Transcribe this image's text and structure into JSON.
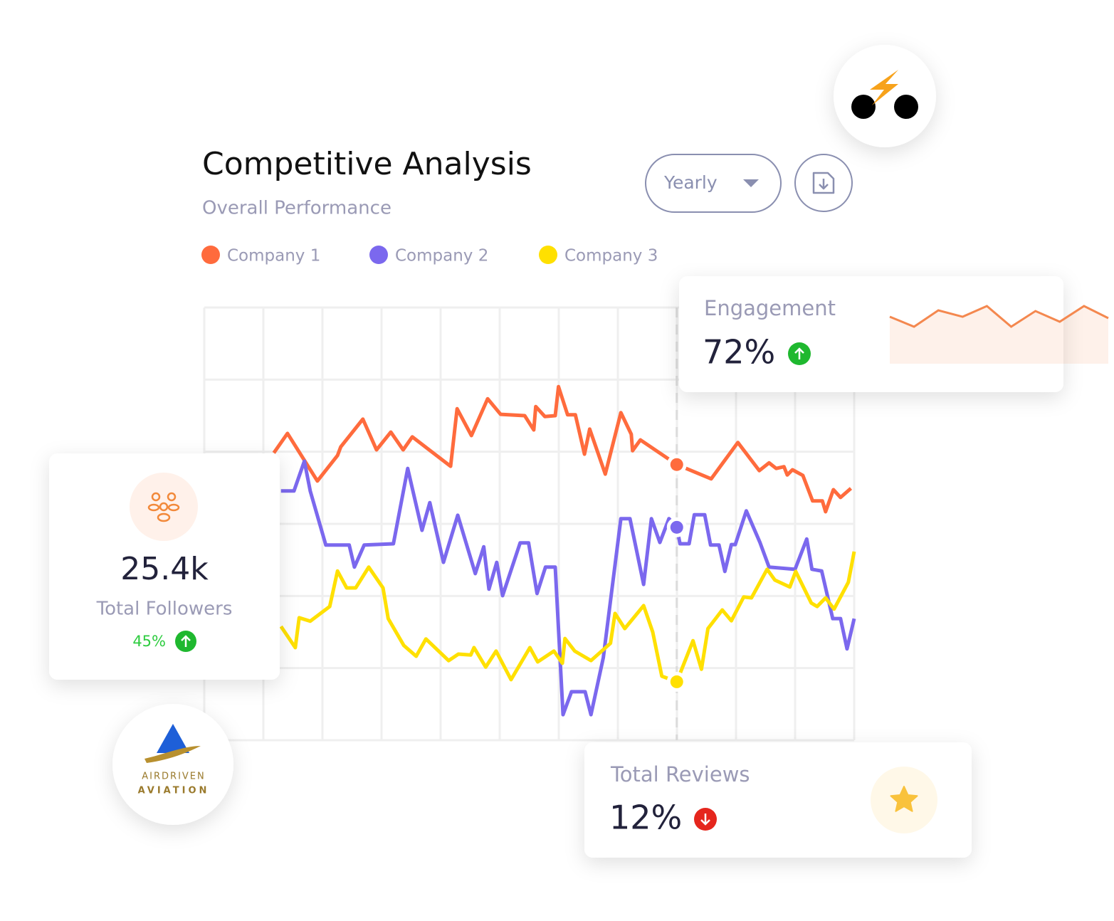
{
  "header": {
    "title": "Competitive Analysis",
    "subtitle": "Overall Performance",
    "period": "Yearly"
  },
  "chart_data": {
    "type": "line",
    "xlim": [
      0,
      100
    ],
    "ylim": [
      0,
      100
    ],
    "grid": true,
    "marker_x": 72.7,
    "series": [
      {
        "name": "Company 1",
        "color": "#ff6b3d",
        "x": [
          10.7,
          12.8,
          17.4,
          20.5,
          21.0,
          24.4,
          26.5,
          28.7,
          30.6,
          32.0,
          37.9,
          38.9,
          41.1,
          43.6,
          45.6,
          49.3,
          50.7,
          51.0,
          52.4,
          54.0,
          54.5,
          55.9,
          57.1,
          58.5,
          59.3,
          61.7,
          64.1,
          65.7,
          65.9,
          67.1,
          72.7,
          78.0,
          82.1,
          85.4,
          86.9,
          88.0,
          89.2,
          89.7,
          90.5,
          92.1,
          93.6,
          95.1,
          95.6,
          96.8,
          97.9,
          99.5
        ],
        "values": [
          66.4,
          70.9,
          59.9,
          65.8,
          67.8,
          74.2,
          67.1,
          71.2,
          67.1,
          70.1,
          63.3,
          76.6,
          70.4,
          78.9,
          75.3,
          75.0,
          71.7,
          77.1,
          74.8,
          75.0,
          81.7,
          75.2,
          75.2,
          66.1,
          71.9,
          61.5,
          75.7,
          70.7,
          66.9,
          69.4,
          63.7,
          60.4,
          68.8,
          62.3,
          64.1,
          62.8,
          63.2,
          61.3,
          62.5,
          61.2,
          55.3,
          55.3,
          52.8,
          57.9,
          56.1,
          58.2
        ]
      },
      {
        "name": "Company 2",
        "color": "#7b68ee",
        "x": [
          11.8,
          13.8,
          15.4,
          16.3,
          18.7,
          22.3,
          23.1,
          24.6,
          29.1,
          31.3,
          33.5,
          34.7,
          36.8,
          39.0,
          41.7,
          43.0,
          43.8,
          45.0,
          45.9,
          48.6,
          49.9,
          51.2,
          52.5,
          54.0,
          55.2,
          56.5,
          58.6,
          59.5,
          61.4,
          64.1,
          65.5,
          67.6,
          68.8,
          70.1,
          71.5,
          72.7,
          73.2,
          74.6,
          75.4,
          77.0,
          77.9,
          79.2,
          80.1,
          81.1,
          81.7,
          83.4,
          85.5,
          86.9,
          90.9,
          92.7,
          93.5,
          95.0,
          96.7,
          97.9,
          98.9,
          100
        ],
        "values": [
          57.6,
          57.6,
          64.5,
          57.6,
          45.1,
          45.1,
          40.0,
          45.1,
          45.4,
          62.8,
          48.5,
          54.9,
          41.1,
          52.0,
          38.5,
          44.7,
          34.9,
          41.1,
          33.4,
          45.6,
          45.6,
          33.9,
          40.0,
          40.0,
          5.9,
          11.2,
          11.2,
          5.9,
          19.1,
          51.2,
          51.2,
          36.0,
          51.2,
          45.7,
          51.2,
          49.2,
          45.4,
          45.4,
          52.1,
          52.1,
          45.1,
          45.1,
          39.0,
          45.2,
          45.2,
          53.0,
          45.7,
          40.0,
          39.5,
          46.5,
          39.5,
          39.1,
          28.1,
          28.1,
          21.1,
          28.1
        ]
      },
      {
        "name": "Company 3",
        "color": "#ffe000",
        "x": [
          11.8,
          14.0,
          14.6,
          16.3,
          19.3,
          20.5,
          21.9,
          23.3,
          25.3,
          27.5,
          28.3,
          30.7,
          32.6,
          34.1,
          37.6,
          39.1,
          41.0,
          41.5,
          43.3,
          44.9,
          47.2,
          50.1,
          51.3,
          53.8,
          55.1,
          55.5,
          57.0,
          59.5,
          62.5,
          63.2,
          64.7,
          67.6,
          69.0,
          70.4,
          72.7,
          75.2,
          76.5,
          77.5,
          79.7,
          81.1,
          83.0,
          84.2,
          86.6,
          87.8,
          90.1,
          91.0,
          93.4,
          94.3,
          95.6,
          96.9,
          99.1,
          100
        ],
        "values": [
          26.3,
          21.4,
          28.3,
          27.5,
          30.9,
          39.1,
          35.2,
          35.2,
          40.0,
          35.2,
          28.1,
          21.9,
          19.4,
          23.4,
          18.4,
          19.9,
          19.7,
          21.4,
          16.9,
          20.6,
          14.0,
          21.4,
          18.1,
          20.6,
          17.8,
          23.5,
          20.6,
          18.4,
          22.4,
          29.3,
          25.8,
          31.1,
          25.0,
          14.8,
          13.5,
          23.0,
          16.4,
          25.8,
          30.1,
          27.6,
          33.1,
          32.9,
          39.5,
          37.0,
          35.4,
          39.0,
          31.7,
          30.9,
          32.9,
          30.3,
          36.5,
          43.6
        ]
      }
    ]
  },
  "engagement": {
    "label": "Engagement",
    "value": "72%",
    "sparkline": {
      "color": "#f4884f",
      "ylim": [
        0,
        100
      ],
      "values": [
        72.5,
        57.1,
        82.4,
        72.5,
        89.0,
        57.1,
        81.3,
        64.8,
        89.0,
        70.3
      ]
    }
  },
  "followers": {
    "value": "25.4k",
    "label": "Total Followers",
    "change": "45%"
  },
  "reviews": {
    "label": "Total Reviews",
    "value": "12%"
  },
  "logo": {
    "line1": "AIRDRIVEN",
    "line2": "AVIATION"
  }
}
